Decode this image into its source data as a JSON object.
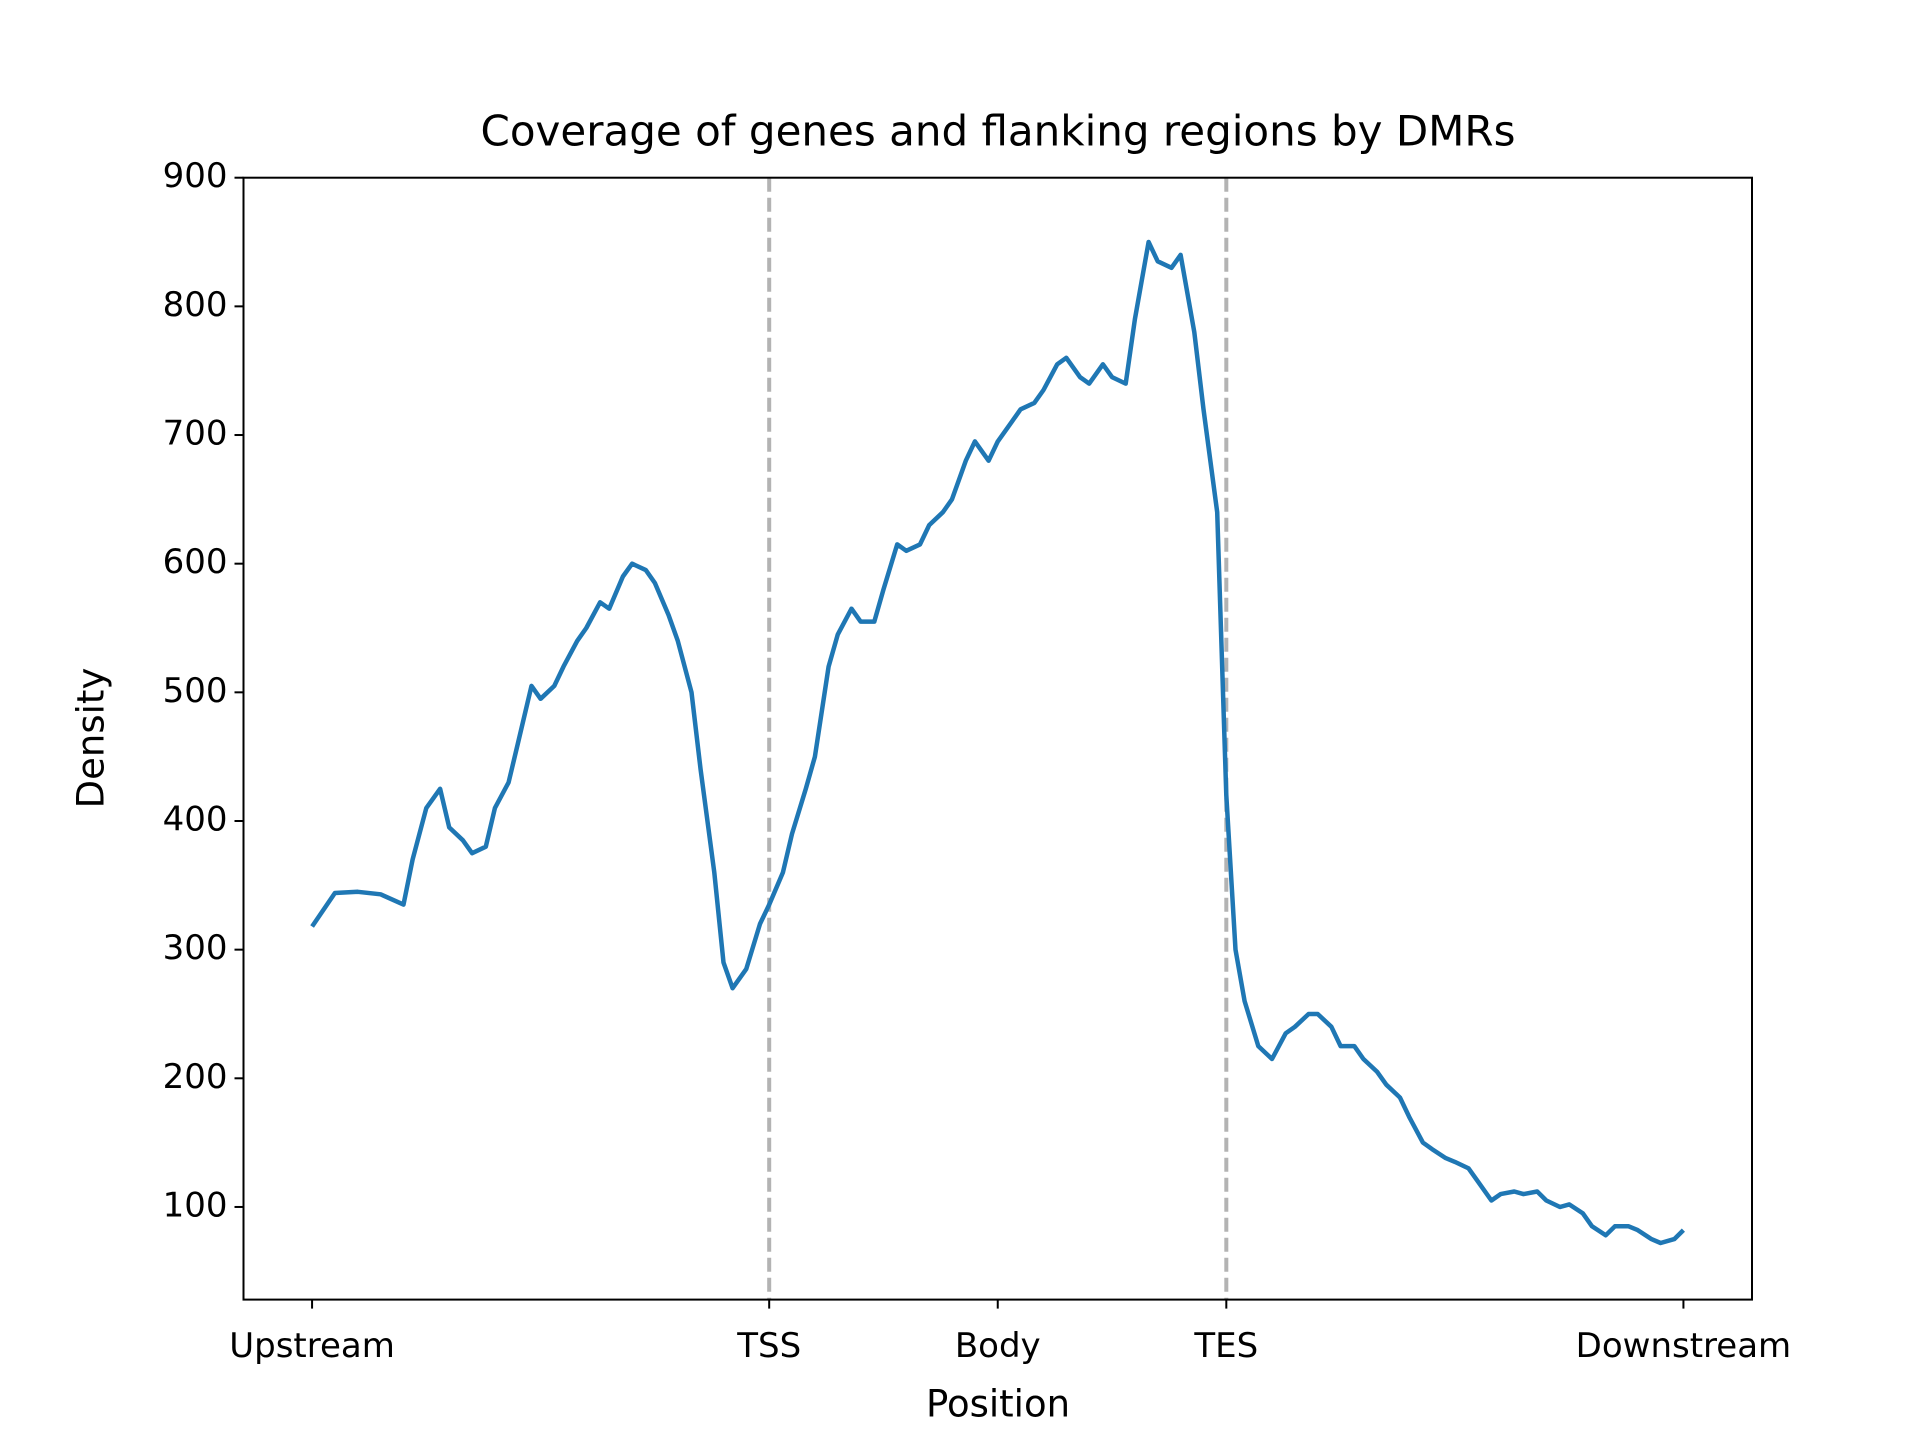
{
  "chart_data": {
    "type": "line",
    "title": "Coverage of genes and flanking regions by DMRs",
    "xlabel": "Position",
    "ylabel": "Density",
    "x": [
      0,
      5,
      10,
      15,
      20,
      22,
      25,
      28,
      30,
      33,
      35,
      38,
      40,
      43,
      45,
      48,
      50,
      53,
      55,
      58,
      60,
      63,
      65,
      68,
      70,
      73,
      75,
      78,
      80,
      83,
      85,
      88,
      90,
      92,
      95,
      98,
      100,
      103,
      105,
      108,
      110,
      113,
      115,
      118,
      120,
      123,
      125,
      128,
      130,
      133,
      135,
      138,
      140,
      143,
      145,
      148,
      150,
      153,
      155,
      158,
      160,
      163,
      165,
      168,
      170,
      173,
      175,
      178,
      180,
      183,
      185,
      188,
      190,
      193,
      195,
      198,
      200,
      202,
      204,
      207,
      210,
      213,
      215,
      218,
      220,
      223,
      225,
      228,
      230,
      233,
      235,
      238,
      240,
      243,
      245,
      248,
      250,
      253,
      255,
      258,
      260,
      263,
      265,
      268,
      270,
      273,
      275,
      278,
      280,
      283,
      285,
      288,
      290,
      293,
      295,
      298,
      300
    ],
    "values": [
      318,
      344,
      345,
      343,
      335,
      370,
      410,
      425,
      395,
      385,
      375,
      380,
      410,
      430,
      460,
      505,
      495,
      505,
      520,
      540,
      550,
      570,
      565,
      590,
      600,
      595,
      585,
      560,
      540,
      500,
      440,
      360,
      290,
      270,
      285,
      320,
      335,
      360,
      390,
      425,
      450,
      520,
      545,
      565,
      555,
      555,
      580,
      615,
      610,
      615,
      630,
      640,
      650,
      680,
      695,
      680,
      695,
      710,
      720,
      725,
      735,
      755,
      760,
      745,
      740,
      755,
      745,
      740,
      790,
      850,
      835,
      830,
      840,
      780,
      720,
      640,
      420,
      300,
      260,
      225,
      215,
      235,
      240,
      250,
      250,
      240,
      225,
      225,
      215,
      205,
      195,
      185,
      170,
      150,
      145,
      138,
      135,
      130,
      120,
      105,
      110,
      112,
      110,
      112,
      105,
      100,
      102,
      95,
      85,
      78,
      85,
      85,
      82,
      75,
      72,
      75,
      82
    ],
    "color": "#1f77b4",
    "xlim": [
      -15,
      315
    ],
    "xticks": [
      {
        "value": 0,
        "label": "Upstream"
      },
      {
        "value": 100,
        "label": "TSS"
      },
      {
        "value": 150,
        "label": "Body"
      },
      {
        "value": 200,
        "label": "TES"
      },
      {
        "value": 300,
        "label": "Downstream"
      }
    ],
    "ylim": [
      28,
      900
    ],
    "yticks": [
      100,
      200,
      300,
      400,
      500,
      600,
      700,
      800,
      900
    ],
    "vlines": [
      100,
      200
    ],
    "vline_color": "#b3b3b3"
  }
}
